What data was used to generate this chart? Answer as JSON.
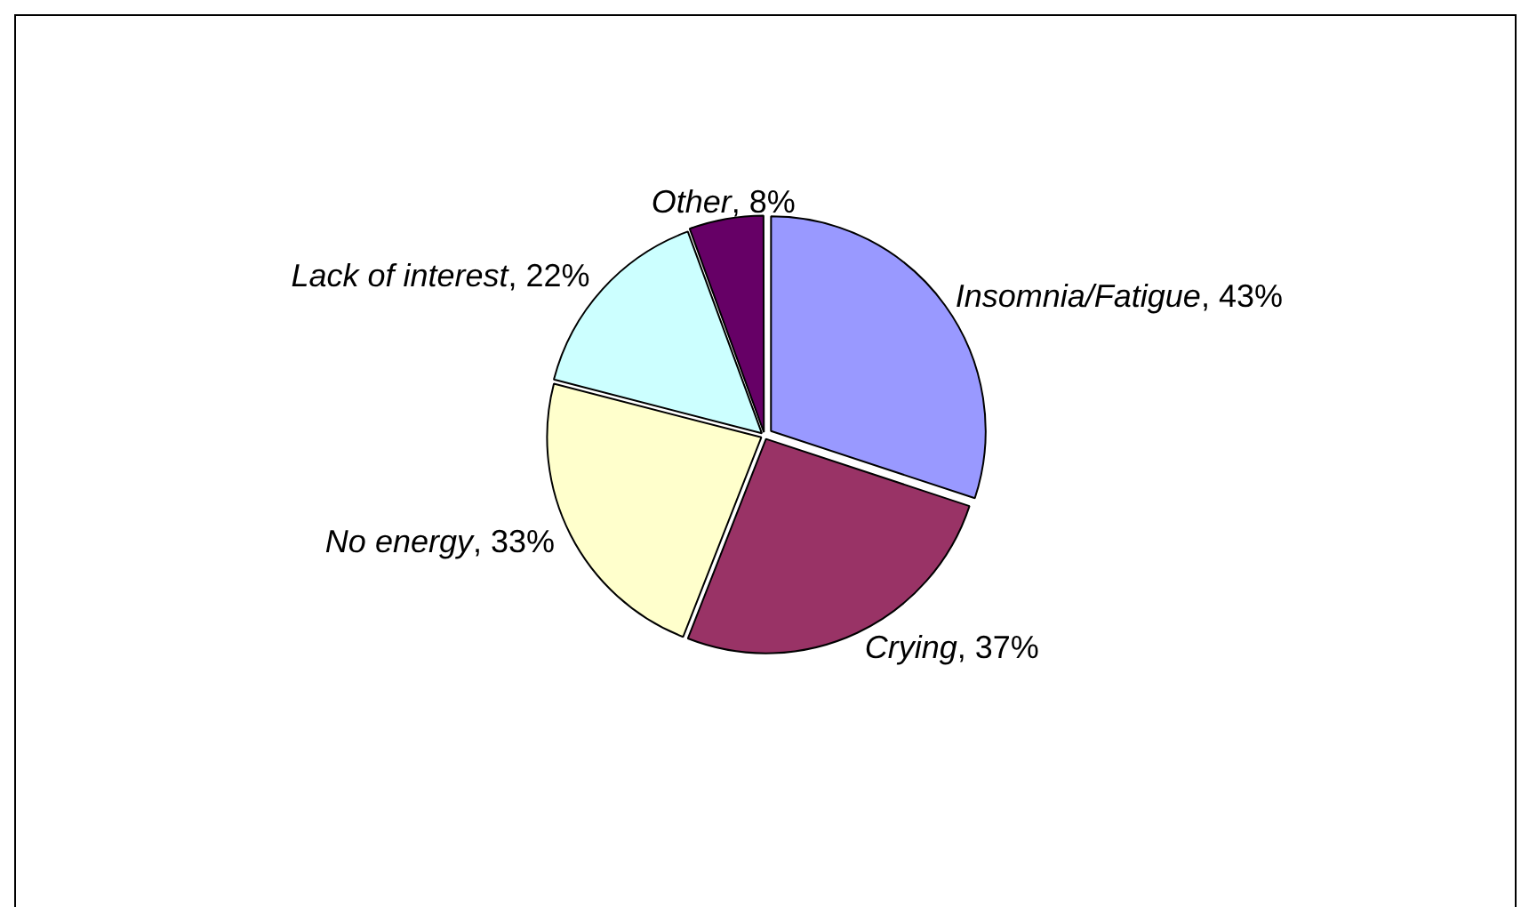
{
  "chart_data": {
    "type": "pie",
    "categories": [
      "Insomnia/Fatigue",
      "Crying",
      "No energy",
      "Lack of interest",
      "Other"
    ],
    "values": [
      43,
      37,
      33,
      22,
      8
    ],
    "value_labels": [
      ", 43%",
      ", 37%",
      ", 33%",
      ", 22%",
      ", 8%"
    ],
    "colors": [
      "#9999ff",
      "#993366",
      "#ffffcc",
      "#ccffff",
      "#660066"
    ],
    "legend": false
  }
}
